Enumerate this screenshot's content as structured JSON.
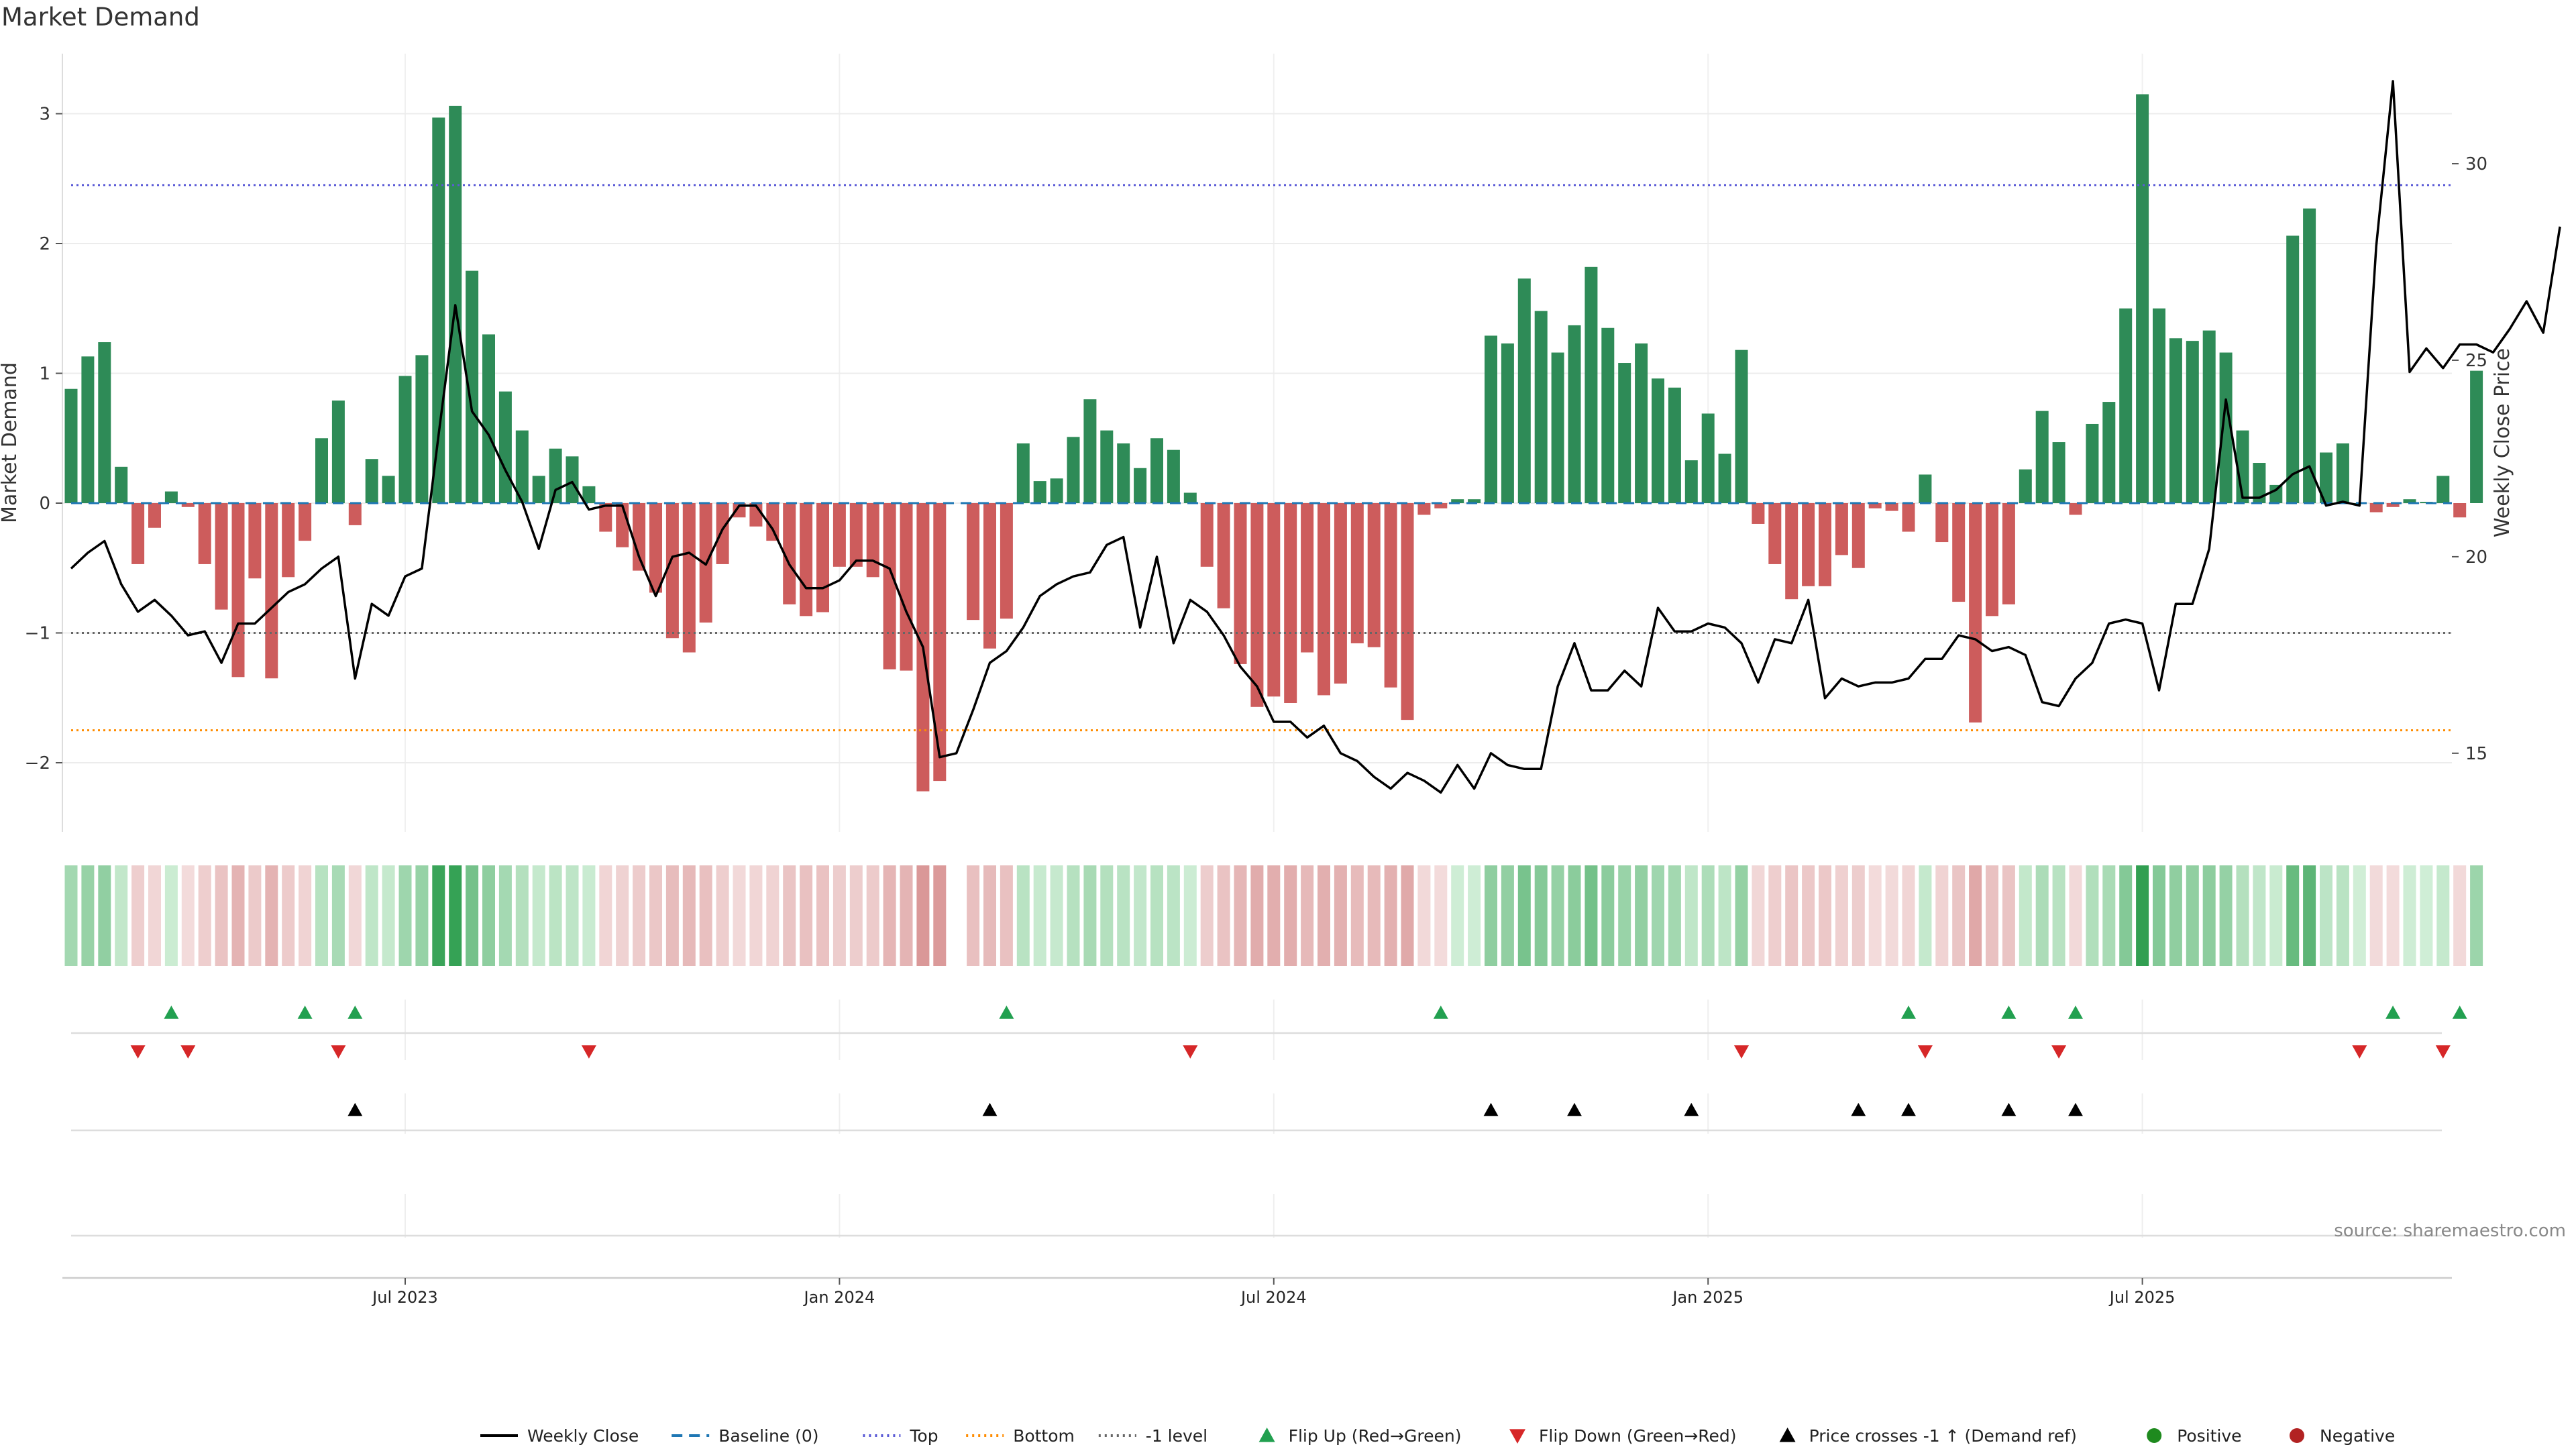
{
  "chart_data": {
    "type": "bar",
    "title": "Market Demand",
    "source": "source: sharemaestro.com",
    "ylabel": "Market Demand",
    "y2label": "Weekly Close Price",
    "ylim": [
      -2.55,
      3.55
    ],
    "y2lim": [
      13.0,
      32.8
    ],
    "y_ticks": [
      {
        "v": 3,
        "label": "3"
      },
      {
        "v": 2,
        "label": "2"
      },
      {
        "v": 1,
        "label": "1"
      },
      {
        "v": 0,
        "label": "0"
      },
      {
        "v": -1,
        "label": "−1"
      },
      {
        "v": -2,
        "label": "−2"
      }
    ],
    "y2_ticks": [
      {
        "v": 30,
        "label": "30"
      },
      {
        "v": 25,
        "label": "25"
      },
      {
        "v": 20,
        "label": "20"
      },
      {
        "v": 15,
        "label": "15"
      }
    ],
    "x_ticks": [
      {
        "week": 20,
        "label": "Jul 2023"
      },
      {
        "week": 46,
        "label": "Jan 2024"
      },
      {
        "week": 72,
        "label": "Jul 2024"
      },
      {
        "week": 98,
        "label": "Jan 2025"
      },
      {
        "week": 124,
        "label": "Jul 2025"
      }
    ],
    "reference_lines": {
      "baseline": 0,
      "top": 2.45,
      "bottom": -1.75,
      "minus_one": -1
    },
    "colors": {
      "positive": "#2e8b57",
      "negative": "#cd5c5c",
      "price": "#000000",
      "top": "#5b5bd6",
      "bottom": "#ff8c00",
      "minus_one": "#666666",
      "baseline": "#1f77b4",
      "flip_up": "#22a050",
      "flip_down": "#d62728",
      "cross": "#000000",
      "legend_positive": "#1e8a1e",
      "legend_negative": "#b22222"
    },
    "demand": [
      0.88,
      1.13,
      1.24,
      0.28,
      -0.47,
      -0.19,
      0.09,
      -0.03,
      -0.47,
      -0.82,
      -1.34,
      -0.58,
      -1.35,
      -0.57,
      -0.29,
      0.5,
      0.79,
      -0.17,
      0.34,
      0.21,
      0.98,
      1.14,
      2.97,
      3.06,
      1.79,
      1.3,
      0.86,
      0.56,
      0.21,
      0.42,
      0.36,
      0.13,
      -0.22,
      -0.34,
      -0.52,
      -0.69,
      -1.04,
      -1.15,
      -0.92,
      -0.47,
      -0.11,
      -0.18,
      -0.29,
      -0.78,
      -0.87,
      -0.84,
      -0.49,
      -0.49,
      -0.57,
      -1.28,
      -1.29,
      -2.22,
      -2.14,
      null,
      -0.9,
      -1.12,
      -0.89,
      0.46,
      0.17,
      0.19,
      0.51,
      0.8,
      0.56,
      0.46,
      0.27,
      0.5,
      0.41,
      0.08,
      -0.49,
      -0.81,
      -1.24,
      -1.57,
      -1.49,
      -1.54,
      -1.15,
      -1.48,
      -1.39,
      -1.08,
      -1.11,
      -1.42,
      -1.67,
      -0.09,
      -0.04,
      0.03,
      0.03,
      1.29,
      1.23,
      1.73,
      1.48,
      1.16,
      1.37,
      1.82,
      1.35,
      1.08,
      1.23,
      0.96,
      0.89,
      0.33,
      0.69,
      0.38,
      1.18,
      -0.16,
      -0.47,
      -0.74,
      -0.64,
      -0.64,
      -0.4,
      -0.5,
      -0.04,
      -0.06,
      -0.22,
      0.22,
      -0.3,
      -0.76,
      -1.69,
      -0.87,
      -0.78,
      0.26,
      0.71,
      0.47,
      -0.09,
      0.61,
      0.78,
      1.5,
      3.15,
      1.5,
      1.27,
      1.25,
      1.33,
      1.16,
      0.56,
      0.31,
      0.14,
      2.06,
      2.27,
      0.39,
      0.46,
      0.0,
      -0.07,
      -0.03,
      0.03,
      0.01,
      0.21,
      -0.11,
      1.02
    ],
    "price": [
      19.7,
      20.1,
      20.4,
      19.3,
      18.6,
      18.9,
      18.5,
      18.0,
      18.1,
      17.3,
      18.3,
      18.3,
      18.7,
      19.1,
      19.3,
      19.7,
      20.0,
      16.9,
      18.8,
      18.5,
      19.5,
      19.7,
      23.1,
      26.4,
      23.7,
      23.1,
      22.2,
      21.4,
      20.2,
      21.7,
      21.9,
      21.2,
      21.3,
      21.3,
      20.0,
      19.0,
      20.0,
      20.1,
      19.8,
      20.7,
      21.3,
      21.3,
      20.7,
      19.8,
      19.2,
      19.2,
      19.4,
      19.9,
      19.9,
      19.7,
      18.6,
      17.7,
      14.9,
      15.0,
      16.1,
      17.3,
      17.6,
      18.2,
      19.0,
      19.3,
      19.5,
      19.6,
      20.3,
      20.5,
      18.2,
      20.0,
      17.8,
      18.9,
      18.6,
      18.0,
      17.2,
      16.7,
      15.8,
      15.8,
      15.4,
      15.7,
      15.0,
      14.8,
      14.4,
      14.1,
      14.5,
      14.3,
      14.0,
      14.7,
      14.1,
      15.0,
      14.7,
      14.6,
      14.6,
      16.7,
      17.8,
      16.6,
      16.6,
      17.1,
      16.7,
      18.7,
      18.1,
      18.1,
      18.3,
      18.2,
      17.8,
      16.8,
      17.9,
      17.8,
      18.9,
      16.4,
      16.9,
      16.7,
      16.8,
      16.8,
      16.9,
      17.4,
      17.4,
      18.0,
      17.9,
      17.6,
      17.7,
      17.5,
      16.3,
      16.2,
      16.9,
      17.3,
      18.3,
      18.4,
      18.3,
      16.6,
      18.8,
      18.8,
      20.2,
      24.0,
      21.5,
      21.5,
      21.7,
      22.1,
      22.3,
      21.3,
      21.4,
      21.3,
      27.9,
      32.1,
      24.7,
      25.3,
      24.8,
      25.4,
      25.4,
      25.2,
      25.8,
      26.5,
      25.7,
      28.4
    ],
    "flip_up": [
      6,
      14,
      17,
      56,
      82,
      110,
      116,
      120,
      139,
      143
    ],
    "flip_down": [
      4,
      7,
      16,
      31,
      67,
      100,
      111,
      119,
      137,
      142
    ],
    "price_crosses": [
      17,
      55,
      85,
      90,
      97,
      107,
      110,
      116,
      120
    ],
    "legend": [
      {
        "type": "line",
        "label": "Weekly Close"
      },
      {
        "type": "dash",
        "label": "Baseline (0)"
      },
      {
        "type": "dot-blue",
        "label": "Top"
      },
      {
        "type": "dot-orange",
        "label": "Bottom"
      },
      {
        "type": "dot-grey",
        "label": "-1 level"
      },
      {
        "type": "tri-up-green",
        "label": "Flip Up (Red→Green)"
      },
      {
        "type": "tri-down-red",
        "label": "Flip Down (Green→Red)"
      },
      {
        "type": "tri-up-black",
        "label": "Price crosses -1 ↑ (Demand ref)"
      },
      {
        "type": "dot-green",
        "label": "Positive"
      },
      {
        "type": "dot-red",
        "label": "Negative"
      }
    ]
  }
}
